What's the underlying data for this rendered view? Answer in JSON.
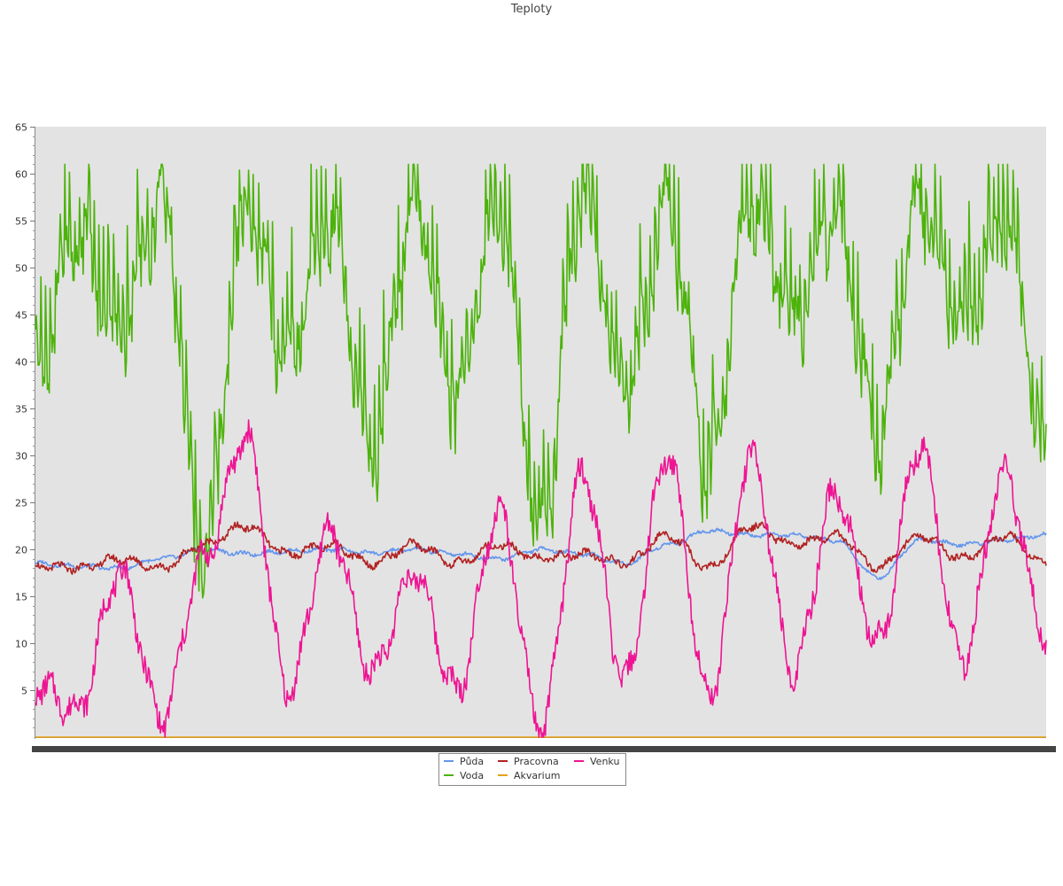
{
  "chart_data": {
    "type": "line",
    "title": "Teploty",
    "xlabel": "",
    "ylabel": "",
    "ylim": [
      0,
      65
    ],
    "yticks": [
      5,
      10,
      15,
      20,
      25,
      30,
      35,
      40,
      45,
      50,
      55,
      60,
      65
    ],
    "grid": false,
    "legend_position": "bottom-center",
    "x_points": 25,
    "x_note": "x tick labels are drawn but unreadable (overlapping)",
    "series": [
      {
        "name": "Půda",
        "color": "#6495ed",
        "values": [
          18.5,
          18.2,
          18.0,
          19.0,
          20.0,
          19.5,
          19.8,
          20.0,
          19.6,
          20.0,
          19.5,
          19.0,
          20.0,
          19.5,
          18.5,
          20.5,
          22.0,
          21.5,
          21.5,
          21.0,
          17.0,
          21.0,
          20.5,
          21.0,
          21.5
        ]
      },
      {
        "name": "Voda",
        "color": "#4cb30a",
        "values": [
          40.0,
          55.0,
          45.0,
          58.0,
          20.0,
          57.0,
          42.0,
          56.0,
          32.0,
          57.0,
          38.0,
          58.0,
          23.0,
          59.0,
          38.0,
          57.0,
          30.0,
          58.0,
          46.0,
          57.0,
          33.0,
          58.0,
          45.0,
          57.0,
          31.0
        ]
      },
      {
        "name": "Pracovna",
        "color": "#b22222",
        "values": [
          18.2,
          18.0,
          19.0,
          18.0,
          20.5,
          22.5,
          19.5,
          20.5,
          18.5,
          20.5,
          18.5,
          20.5,
          19.0,
          19.5,
          18.5,
          21.5,
          18.0,
          22.5,
          20.5,
          21.5,
          18.0,
          21.5,
          19.0,
          21.5,
          18.5
        ]
      },
      {
        "name": "Akvarium",
        "color": "#e8a010",
        "values": [
          0.0,
          0.0,
          0.0,
          0.0,
          0.0,
          0.0,
          0.0,
          0.0,
          0.0,
          0.0,
          0.0,
          0.0,
          0.0,
          0.0,
          0.0,
          0.0,
          0.0,
          0.0,
          0.0,
          0.0,
          0.0,
          0.0,
          0.0,
          0.0,
          0.0
        ]
      },
      {
        "name": "Venku",
        "color": "#ee1493",
        "values": [
          5.5,
          3.0,
          17.5,
          2.0,
          19.0,
          32.0,
          5.0,
          22.0,
          7.0,
          17.5,
          5.0,
          24.0,
          1.0,
          28.0,
          6.0,
          30.0,
          4.5,
          30.0,
          7.0,
          26.0,
          10.0,
          31.0,
          8.0,
          28.0,
          11.0
        ]
      }
    ]
  }
}
